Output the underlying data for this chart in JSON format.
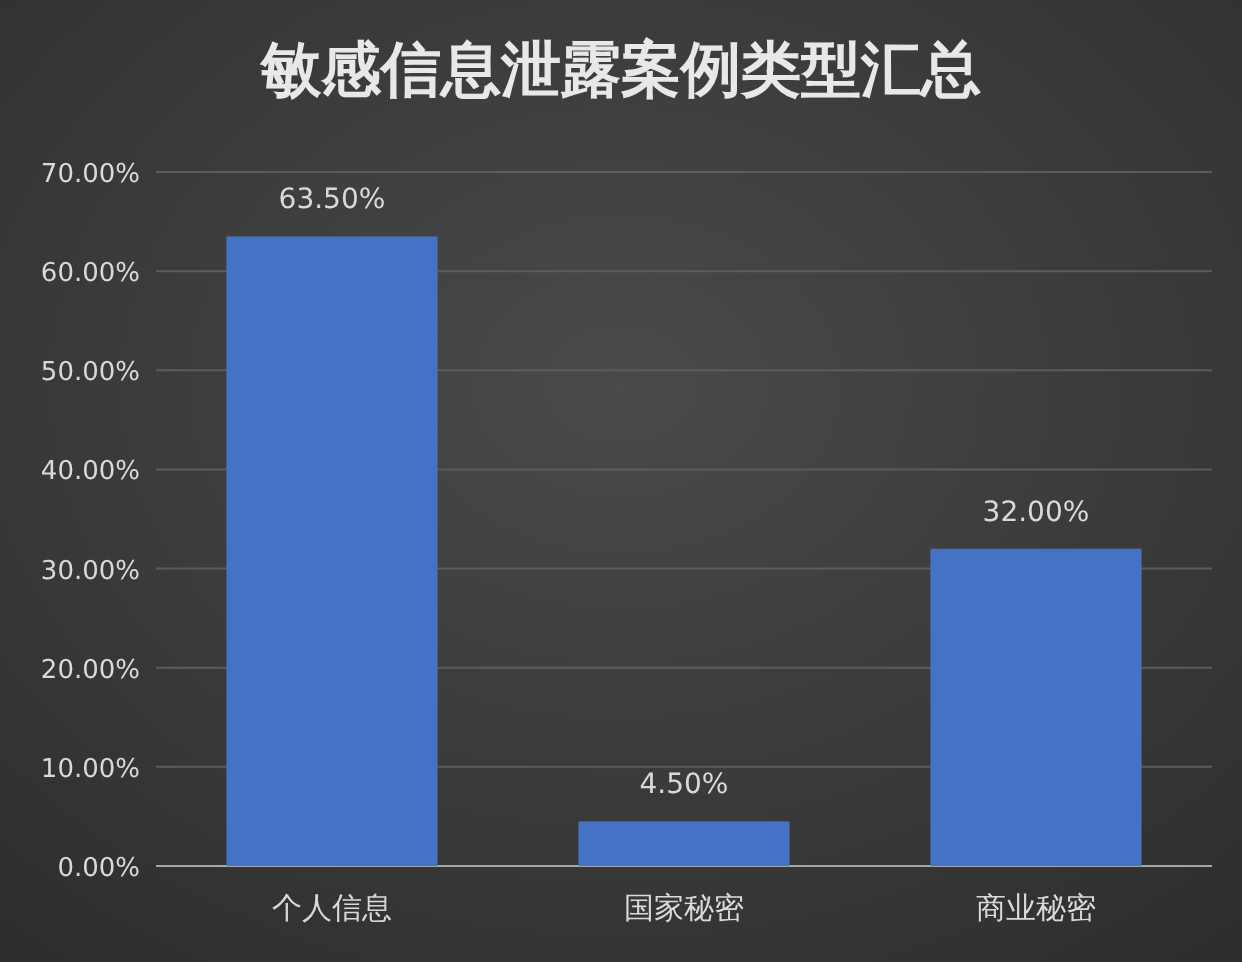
{
  "chart_data": {
    "type": "bar",
    "title": "敏感信息泄露案例类型汇总",
    "categories": [
      "个人信息",
      "国家秘密",
      "商业秘密"
    ],
    "values": [
      63.5,
      4.5,
      32
    ],
    "value_labels": [
      "63.50%",
      "4.50%",
      "32.00%"
    ],
    "color": "#4472c4",
    "ylim": [
      0,
      70
    ],
    "yticks": [
      {
        "value": 0,
        "label": "0.00%"
      },
      {
        "value": 10,
        "label": "10.00%"
      },
      {
        "value": 20,
        "label": "20.00%"
      },
      {
        "value": 30,
        "label": "30.00%"
      },
      {
        "value": 40,
        "label": "40.00%"
      },
      {
        "value": 50,
        "label": "50.00%"
      },
      {
        "value": 60,
        "label": "60.00%"
      },
      {
        "value": 70,
        "label": "70.00%"
      }
    ],
    "grid": "y"
  }
}
